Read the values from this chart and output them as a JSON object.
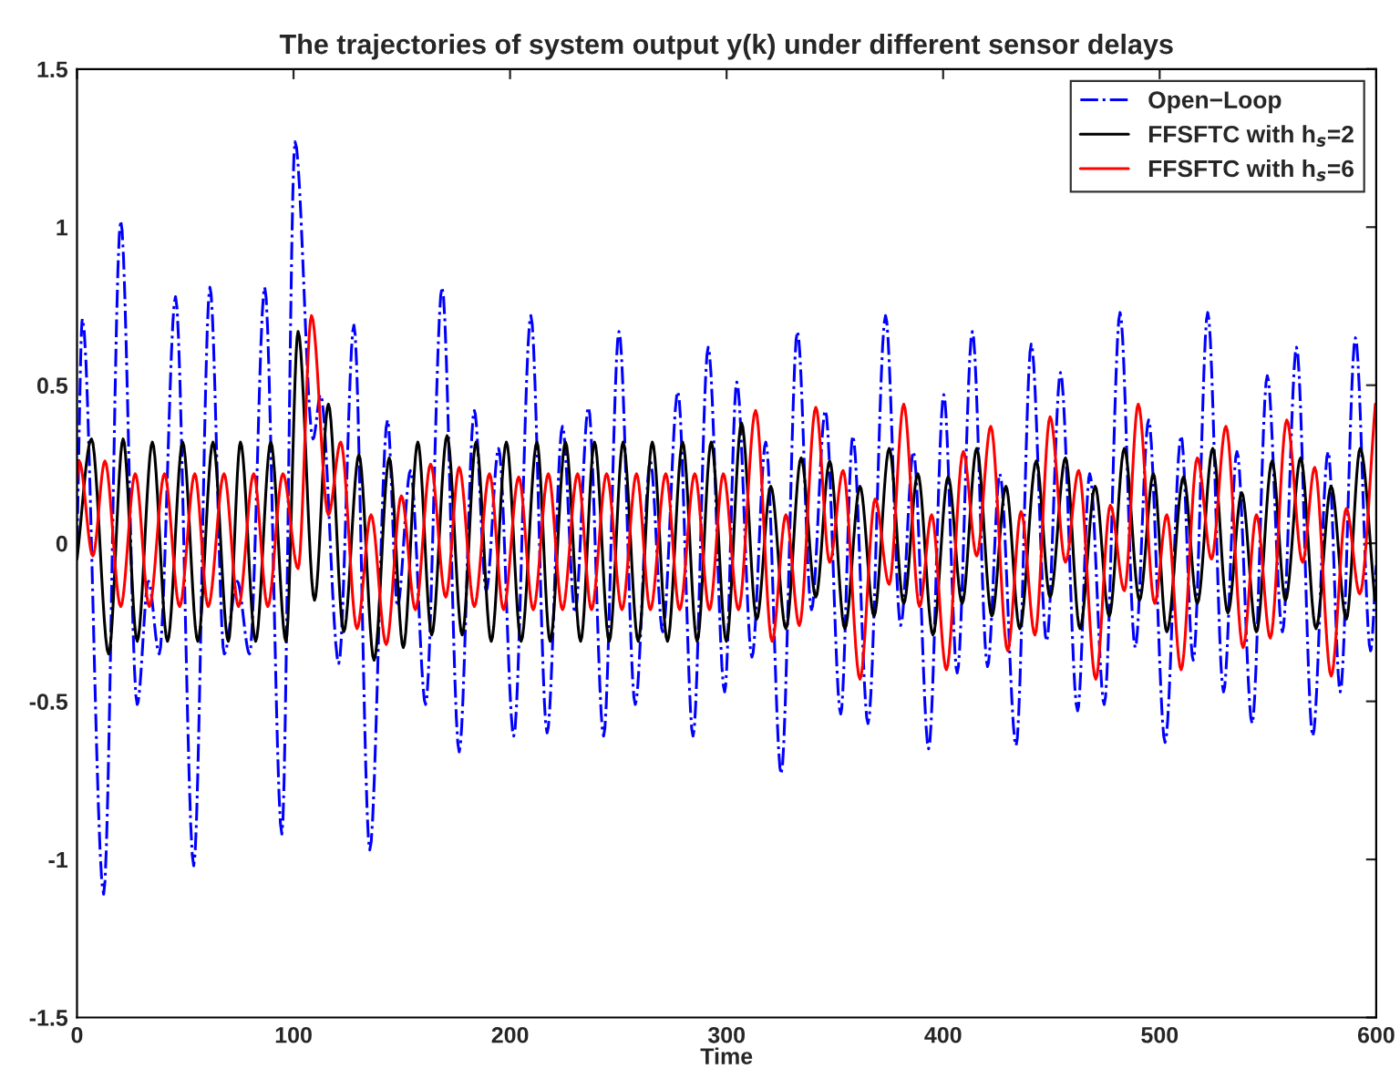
{
  "chart_data": {
    "type": "line",
    "title": "The trajectories of system output y(k) under different sensor delays",
    "xlabel": "Time",
    "xlim": [
      0,
      600
    ],
    "xticks": [
      0,
      100,
      200,
      300,
      400,
      500,
      600
    ],
    "ylim": [
      -1.5,
      1.5
    ],
    "yticks": [
      -1.5,
      -1,
      -0.5,
      0,
      0.5,
      1,
      1.5
    ],
    "legend": "top right",
    "grid": false,
    "series": [
      {
        "name": "Open−Loop",
        "color": "#0000ff",
        "line_style": "dashdot",
        "x": [
          0,
          2.5,
          12.3,
          20.2,
          27.8,
          33,
          38,
          45.5,
          53.9,
          61.4,
          68,
          74,
          79.7,
          86.7,
          94.6,
          100.7,
          109,
          112.5,
          120.9,
          127.9,
          135.2,
          143.4,
          148,
          154,
          161,
          168.6,
          176.5,
          183.5,
          189,
          194.7,
          201.7,
          209.6,
          217.1,
          224.2,
          230,
          236.2,
          243.2,
          250.3,
          257.8,
          264.8,
          270.5,
          277.5,
          284.5,
          291.5,
          299.1,
          304.7,
          311.7,
          318.1,
          325.2,
          332.7,
          339.2,
          345.6,
          352.7,
          358.3,
          365.3,
          373.4,
          380.4,
          386.3,
          393.3,
          400.3,
          406.5,
          413.5,
          420.5,
          426.2,
          433.7,
          440.7,
          447.8,
          454.2,
          462.1,
          467.7,
          474.4,
          481.7,
          488.7,
          494.9,
          502.5,
          509.9,
          515.5,
          522.2,
          529.5,
          535.7,
          542.7,
          549.7,
          556.7,
          563.2,
          570.7,
          577.8,
          583.4,
          590.4,
          597.4,
          600
        ],
        "values": [
          0,
          0.71,
          -1.11,
          1.02,
          -0.51,
          -0.12,
          -0.35,
          0.78,
          -1.02,
          0.81,
          -0.35,
          -0.12,
          -0.35,
          0.81,
          -0.92,
          1.27,
          0.33,
          0.47,
          -0.38,
          0.69,
          -0.97,
          0.39,
          -0.2,
          0.23,
          -0.51,
          0.81,
          -0.66,
          0.42,
          -0.15,
          0.3,
          -0.61,
          0.72,
          -0.6,
          0.37,
          -0.22,
          0.43,
          -0.61,
          0.67,
          -0.51,
          0.26,
          -0.28,
          0.48,
          -0.61,
          0.62,
          -0.47,
          0.51,
          -0.36,
          0.32,
          -0.73,
          0.67,
          -0.21,
          0.42,
          -0.54,
          0.34,
          -0.57,
          0.72,
          -0.26,
          0.29,
          -0.65,
          0.47,
          -0.41,
          0.67,
          -0.39,
          0.22,
          -0.64,
          0.63,
          -0.31,
          0.54,
          -0.53,
          0.22,
          -0.51,
          0.73,
          -0.33,
          0.39,
          -0.63,
          0.34,
          -0.37,
          0.73,
          -0.47,
          0.29,
          -0.57,
          0.53,
          -0.28,
          0.62,
          -0.61,
          0.29,
          -0.47,
          0.65,
          -0.34,
          -0.07
        ]
      },
      {
        "name": "FFSFTC with h$_{s}$=2",
        "color": "#000000",
        "line_style": "solid",
        "x": [
          0,
          6.7,
          14.6,
          21.3,
          27.8,
          34.8,
          41.8,
          48.8,
          55.8,
          62.8,
          69.9,
          75.5,
          82.5,
          89.5,
          96.5,
          102.1,
          109.7,
          116.1,
          123.2,
          130.2,
          137.2,
          144.2,
          150.7,
          157.4,
          163.8,
          170.9,
          177.9,
          184.3,
          191.3,
          198.3,
          205.1,
          212.4,
          218.5,
          225.6,
          232.6,
          239,
          245.8,
          252.2,
          259.2,
          265.7,
          272.7,
          279.7,
          286.4,
          292.9,
          299.9,
          306.9,
          313.9,
          320.4,
          327.4,
          334.4,
          341.2,
          347.6,
          354.6,
          361.6,
          368.1,
          375.1,
          381.8,
          388.3,
          395.3,
          402.3,
          408.8,
          415.5,
          422.5,
          429,
          435.4,
          443,
          449.4,
          456.5,
          463.2,
          470.2,
          476.7,
          483.7,
          490.7,
          497.1,
          503.3,
          511,
          517.4,
          524.5,
          531.5,
          537.9,
          544.7,
          551.9,
          558.1,
          565.1,
          572.2,
          579.2,
          586.2,
          592.6,
          599.4
        ],
        "values": [
          -0.05,
          0.33,
          -0.35,
          0.33,
          -0.31,
          0.32,
          -0.31,
          0.32,
          -0.31,
          0.32,
          -0.31,
          0.32,
          -0.31,
          0.32,
          -0.31,
          0.67,
          -0.18,
          0.44,
          -0.28,
          0.28,
          -0.37,
          0.27,
          -0.33,
          0.32,
          -0.29,
          0.34,
          -0.29,
          0.32,
          -0.31,
          0.32,
          -0.31,
          0.32,
          -0.31,
          0.32,
          -0.31,
          0.32,
          -0.31,
          0.32,
          -0.31,
          0.32,
          -0.31,
          0.32,
          -0.31,
          0.32,
          -0.31,
          0.38,
          -0.24,
          0.18,
          -0.27,
          0.27,
          -0.17,
          0.26,
          -0.27,
          0.18,
          -0.23,
          0.3,
          -0.19,
          0.22,
          -0.29,
          0.21,
          -0.19,
          0.3,
          -0.23,
          0.18,
          -0.27,
          0.26,
          -0.17,
          0.27,
          -0.27,
          0.18,
          -0.23,
          0.3,
          -0.18,
          0.22,
          -0.28,
          0.21,
          -0.19,
          0.3,
          -0.22,
          0.16,
          -0.28,
          0.26,
          -0.18,
          0.27,
          -0.27,
          0.18,
          -0.24,
          0.3,
          -0.18
        ]
      },
      {
        "name": "FFSFTC with h$_{s}$=6",
        "color": "#ff0000",
        "line_style": "solid",
        "x": [
          0,
          1,
          7.3,
          12.9,
          20.2,
          26.9,
          33.4,
          40.4,
          47.4,
          54.4,
          60.6,
          67.9,
          74.6,
          81.6,
          88.1,
          95.1,
          102.1,
          108.3,
          116.1,
          121.8,
          129.3,
          135.8,
          142.8,
          149.8,
          156.3,
          163.3,
          170.3,
          176.5,
          183.5,
          190.5,
          197,
          204,
          210.7,
          217.7,
          224.2,
          231.2,
          237.6,
          244.6,
          251.7,
          258.4,
          264.8,
          271.9,
          278.3,
          285.3,
          292.1,
          298.5,
          305.5,
          313.4,
          321,
          327.4,
          333.6,
          341.2,
          347.6,
          353.8,
          361.6,
          368.6,
          375.1,
          381.8,
          389.1,
          394.7,
          401.5,
          409.3,
          415.5,
          422,
          429.8,
          436,
          442.4,
          449.4,
          456.5,
          462.6,
          470.5,
          477.2,
          483.7,
          490.1,
          497.7,
          503.3,
          509.9,
          517.4,
          523.9,
          530.6,
          538.5,
          544.7,
          551.1,
          558.7,
          566,
          571.6,
          579.2,
          586.2,
          592.4,
          599.6
        ],
        "values": [
          0.2,
          0.26,
          -0.04,
          0.26,
          -0.2,
          0.22,
          -0.2,
          0.22,
          -0.2,
          0.22,
          -0.2,
          0.22,
          -0.2,
          0.22,
          -0.2,
          0.22,
          -0.08,
          0.72,
          0.09,
          0.32,
          -0.27,
          0.09,
          -0.32,
          0.15,
          -0.21,
          0.25,
          -0.17,
          0.24,
          -0.2,
          0.22,
          -0.21,
          0.21,
          -0.21,
          0.22,
          -0.21,
          0.22,
          -0.21,
          0.22,
          -0.21,
          0.22,
          -0.21,
          0.22,
          -0.21,
          0.22,
          -0.21,
          0.22,
          -0.21,
          0.42,
          -0.31,
          0.09,
          -0.26,
          0.43,
          -0.06,
          0.23,
          -0.43,
          0.14,
          -0.13,
          0.44,
          -0.2,
          0.09,
          -0.4,
          0.29,
          -0.04,
          0.37,
          -0.34,
          0.1,
          -0.29,
          0.4,
          -0.06,
          0.23,
          -0.43,
          0.12,
          -0.15,
          0.44,
          -0.19,
          0.09,
          -0.4,
          0.27,
          -0.05,
          0.37,
          -0.33,
          0.09,
          -0.3,
          0.39,
          -0.06,
          0.24,
          -0.42,
          0.11,
          -0.16,
          0.44
        ]
      }
    ]
  }
}
